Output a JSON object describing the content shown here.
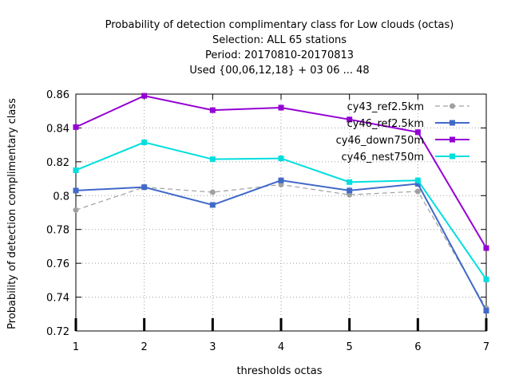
{
  "chart_data": {
    "type": "line",
    "title_lines": [
      "Probability of detection complimentary class  for Low clouds (octas)",
      "Selection: ALL      65 stations",
      "Period: 20170810-20170813",
      "Used {00,06,12,18} + 03 06 ... 48"
    ],
    "xlabel": "thresholds octas",
    "ylabel": "Probability of detection complimentary class",
    "x": [
      1,
      2,
      3,
      4,
      5,
      6,
      7
    ],
    "xlim": [
      1,
      7
    ],
    "ylim": [
      0.72,
      0.86
    ],
    "x_ticks": [
      1,
      2,
      3,
      4,
      5,
      6,
      7
    ],
    "y_ticks": [
      0.72,
      0.74,
      0.76,
      0.78,
      0.8,
      0.82,
      0.84,
      0.86
    ],
    "y_tick_labels": [
      "0.72",
      "0.74",
      "0.76",
      "0.78",
      "0.8",
      "0.82",
      "0.84",
      "0.86"
    ],
    "grid": true,
    "legend_position": "top-right",
    "series": [
      {
        "name": "cy43_ref2.5km",
        "color": "#a0a0a0",
        "dashed": true,
        "values": [
          0.7915,
          0.805,
          0.802,
          0.8065,
          0.8005,
          0.8025,
          0.7335
        ]
      },
      {
        "name": "cy46_ref2.5km",
        "color": "#4169c8",
        "dashed": false,
        "values": [
          0.803,
          0.805,
          0.7945,
          0.809,
          0.803,
          0.807,
          0.732
        ]
      },
      {
        "name": "cy46_down750m",
        "color": "#9400d3",
        "dashed": false,
        "values": [
          0.8405,
          0.859,
          0.8505,
          0.852,
          0.845,
          0.8375,
          0.769
        ]
      },
      {
        "name": "cy46_nest750m",
        "color": "#00dede",
        "dashed": false,
        "values": [
          0.815,
          0.8315,
          0.8215,
          0.822,
          0.808,
          0.809,
          0.7505
        ]
      }
    ]
  }
}
